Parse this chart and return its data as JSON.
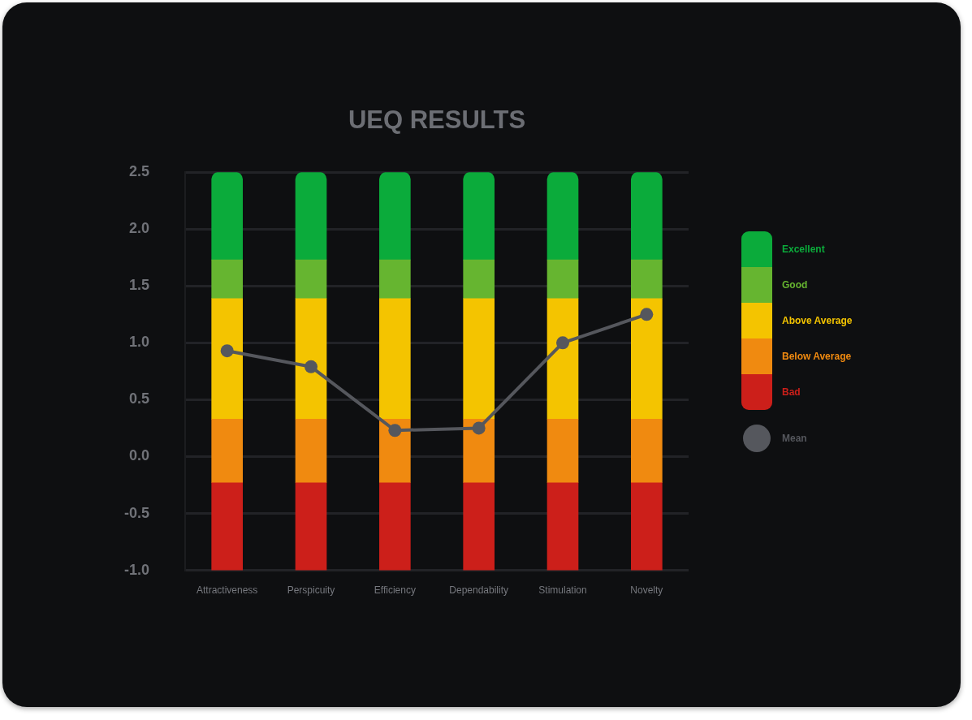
{
  "chart_data": {
    "type": "bar",
    "title": "UEQ RESULTS",
    "categories": [
      "Attractiveness",
      "Perspicuity",
      "Efficiency",
      "Dependability",
      "Stimulation",
      "Novelty"
    ],
    "series": [
      {
        "name": "Bad",
        "color": "#cc1f1a",
        "base": [
          -1,
          -1,
          -1,
          -1,
          -1,
          -1
        ],
        "values": [
          0.77,
          0.77,
          0.77,
          0.77,
          0.77,
          0.77
        ]
      },
      {
        "name": "Below Average",
        "color": "#f08a10",
        "base": [
          -0.23,
          -0.23,
          -0.23,
          -0.23,
          -0.23,
          -0.23
        ],
        "values": [
          0.56,
          0.56,
          0.56,
          0.56,
          0.56,
          0.56
        ]
      },
      {
        "name": "Above Average",
        "color": "#f4c400",
        "base": [
          0.33,
          0.33,
          0.33,
          0.33,
          0.33,
          0.33
        ],
        "values": [
          1.06,
          1.06,
          1.06,
          1.06,
          1.06,
          1.06
        ]
      },
      {
        "name": "Good",
        "color": "#66b530",
        "base": [
          1.39,
          1.39,
          1.39,
          1.39,
          1.39,
          1.39
        ],
        "values": [
          0.34,
          0.34,
          0.34,
          0.34,
          0.34,
          0.34
        ]
      },
      {
        "name": "Excellent",
        "color": "#0bab3b",
        "base": [
          1.73,
          1.73,
          1.73,
          1.73,
          1.73,
          1.73
        ],
        "values": [
          0.77,
          0.77,
          0.77,
          0.77,
          0.77,
          0.77
        ]
      },
      {
        "name": "Mean",
        "type": "line",
        "color": "#55575d",
        "values": [
          0.93,
          0.79,
          0.23,
          0.25,
          1.0,
          1.25
        ]
      }
    ],
    "marker": "circle",
    "ylim": [
      -1,
      2.5
    ],
    "yticks": [
      {
        "value": -1,
        "label": "-1.0"
      },
      -0.5,
      {
        "value": 0,
        "label": "0.0"
      },
      0.5,
      {
        "value": 1,
        "label": "1.0"
      },
      1.5,
      {
        "value": 2,
        "label": "2.0"
      },
      2.5
    ],
    "grid": "y",
    "legend": "right"
  }
}
